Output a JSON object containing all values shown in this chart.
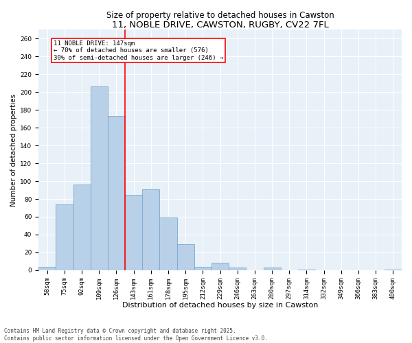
{
  "title1": "11, NOBLE DRIVE, CAWSTON, RUGBY, CV22 7FL",
  "title2": "Size of property relative to detached houses in Cawston",
  "xlabel": "Distribution of detached houses by size in Cawston",
  "ylabel": "Number of detached properties",
  "bar_color": "#b8d0e8",
  "bar_edge_color": "#7aa8cc",
  "categories": [
    "58sqm",
    "75sqm",
    "92sqm",
    "109sqm",
    "126sqm",
    "143sqm",
    "161sqm",
    "178sqm",
    "195sqm",
    "212sqm",
    "229sqm",
    "246sqm",
    "263sqm",
    "280sqm",
    "297sqm",
    "314sqm",
    "332sqm",
    "349sqm",
    "366sqm",
    "383sqm",
    "400sqm"
  ],
  "values": [
    4,
    74,
    96,
    206,
    173,
    85,
    91,
    59,
    29,
    4,
    8,
    3,
    0,
    3,
    0,
    1,
    0,
    0,
    0,
    0,
    1
  ],
  "vline_index": 5,
  "ann_line1": "11 NOBLE DRIVE: 147sqm",
  "ann_line2": "← 70% of detached houses are smaller (576)",
  "ann_line3": "30% of semi-detached houses are larger (246) →",
  "ylim": [
    0,
    270
  ],
  "yticks": [
    0,
    20,
    40,
    60,
    80,
    100,
    120,
    140,
    160,
    180,
    200,
    220,
    240,
    260
  ],
  "footer1": "Contains HM Land Registry data © Crown copyright and database right 2025.",
  "footer2": "Contains public sector information licensed under the Open Government Licence v3.0.",
  "bg_color": "#e8f0f8",
  "grid_color": "#ffffff",
  "fig_bg_color": "#ffffff",
  "title1_fontsize": 9.5,
  "title2_fontsize": 8.5,
  "xlabel_fontsize": 8,
  "ylabel_fontsize": 7.5,
  "tick_fontsize": 6.5,
  "ann_fontsize": 6.5,
  "footer_fontsize": 5.5
}
